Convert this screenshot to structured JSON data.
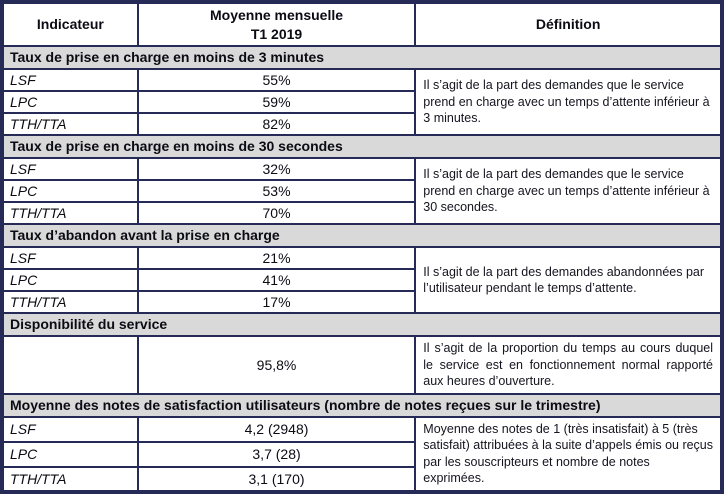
{
  "header": {
    "indicator": "Indicateur",
    "average_line1": "Moyenne mensuelle",
    "average_line2": "T1 2019",
    "definition": "Définition"
  },
  "sections": [
    {
      "title": "Taux de prise en charge en moins de 3 minutes",
      "rows": [
        {
          "label": "LSF",
          "value": "55%"
        },
        {
          "label": "LPC",
          "value": "59%"
        },
        {
          "label": "TTH/TTA",
          "value": "82%"
        }
      ],
      "definition": "Il s’agit de la part des demandes que le service prend en charge avec un temps d’attente inférieur à 3 minutes."
    },
    {
      "title": "Taux de prise en charge en moins de 30 secondes",
      "rows": [
        {
          "label": "LSF",
          "value": "32%"
        },
        {
          "label": "LPC",
          "value": "53%"
        },
        {
          "label": "TTH/TTA",
          "value": "70%"
        }
      ],
      "definition": "Il s’agit de la part des demandes que le service prend en charge avec un temps d’attente inférieur à 30 secondes."
    },
    {
      "title": "Taux d’abandon avant la prise en charge",
      "rows": [
        {
          "label": "LSF",
          "value": "21%"
        },
        {
          "label": "LPC",
          "value": "41%"
        },
        {
          "label": "TTH/TTA",
          "value": "17%"
        }
      ],
      "definition": "Il s’agit de la part des demandes abandonnées par l’utilisateur pendant le  temps d’attente."
    },
    {
      "title": "Disponibilité du service",
      "rows": [
        {
          "label": "",
          "value": "95,8%"
        }
      ],
      "definition": "Il s’agit de la proportion du temps au cours duquel le service est en fonctionnement normal rapporté aux  heures d’ouverture."
    },
    {
      "title": "Moyenne des notes de satisfaction utilisateurs (nombre de notes reçues sur le trimestre)",
      "rows": [
        {
          "label": "LSF",
          "value": "4,2 (2948)"
        },
        {
          "label": "LPC",
          "value": "3,7  (28)"
        },
        {
          "label": "TTH/TTA",
          "value": "3,1  (170)"
        }
      ],
      "definition": "Moyenne des notes de 1 (très insatisfait) à 5 (très satisfait) attribuées à la suite d’appels émis ou reçus par les souscripteurs et nombre de notes exprimées."
    }
  ],
  "colors": {
    "border": "#252a56",
    "section_background": "#d9d9d9",
    "text": "#0b0b14"
  }
}
